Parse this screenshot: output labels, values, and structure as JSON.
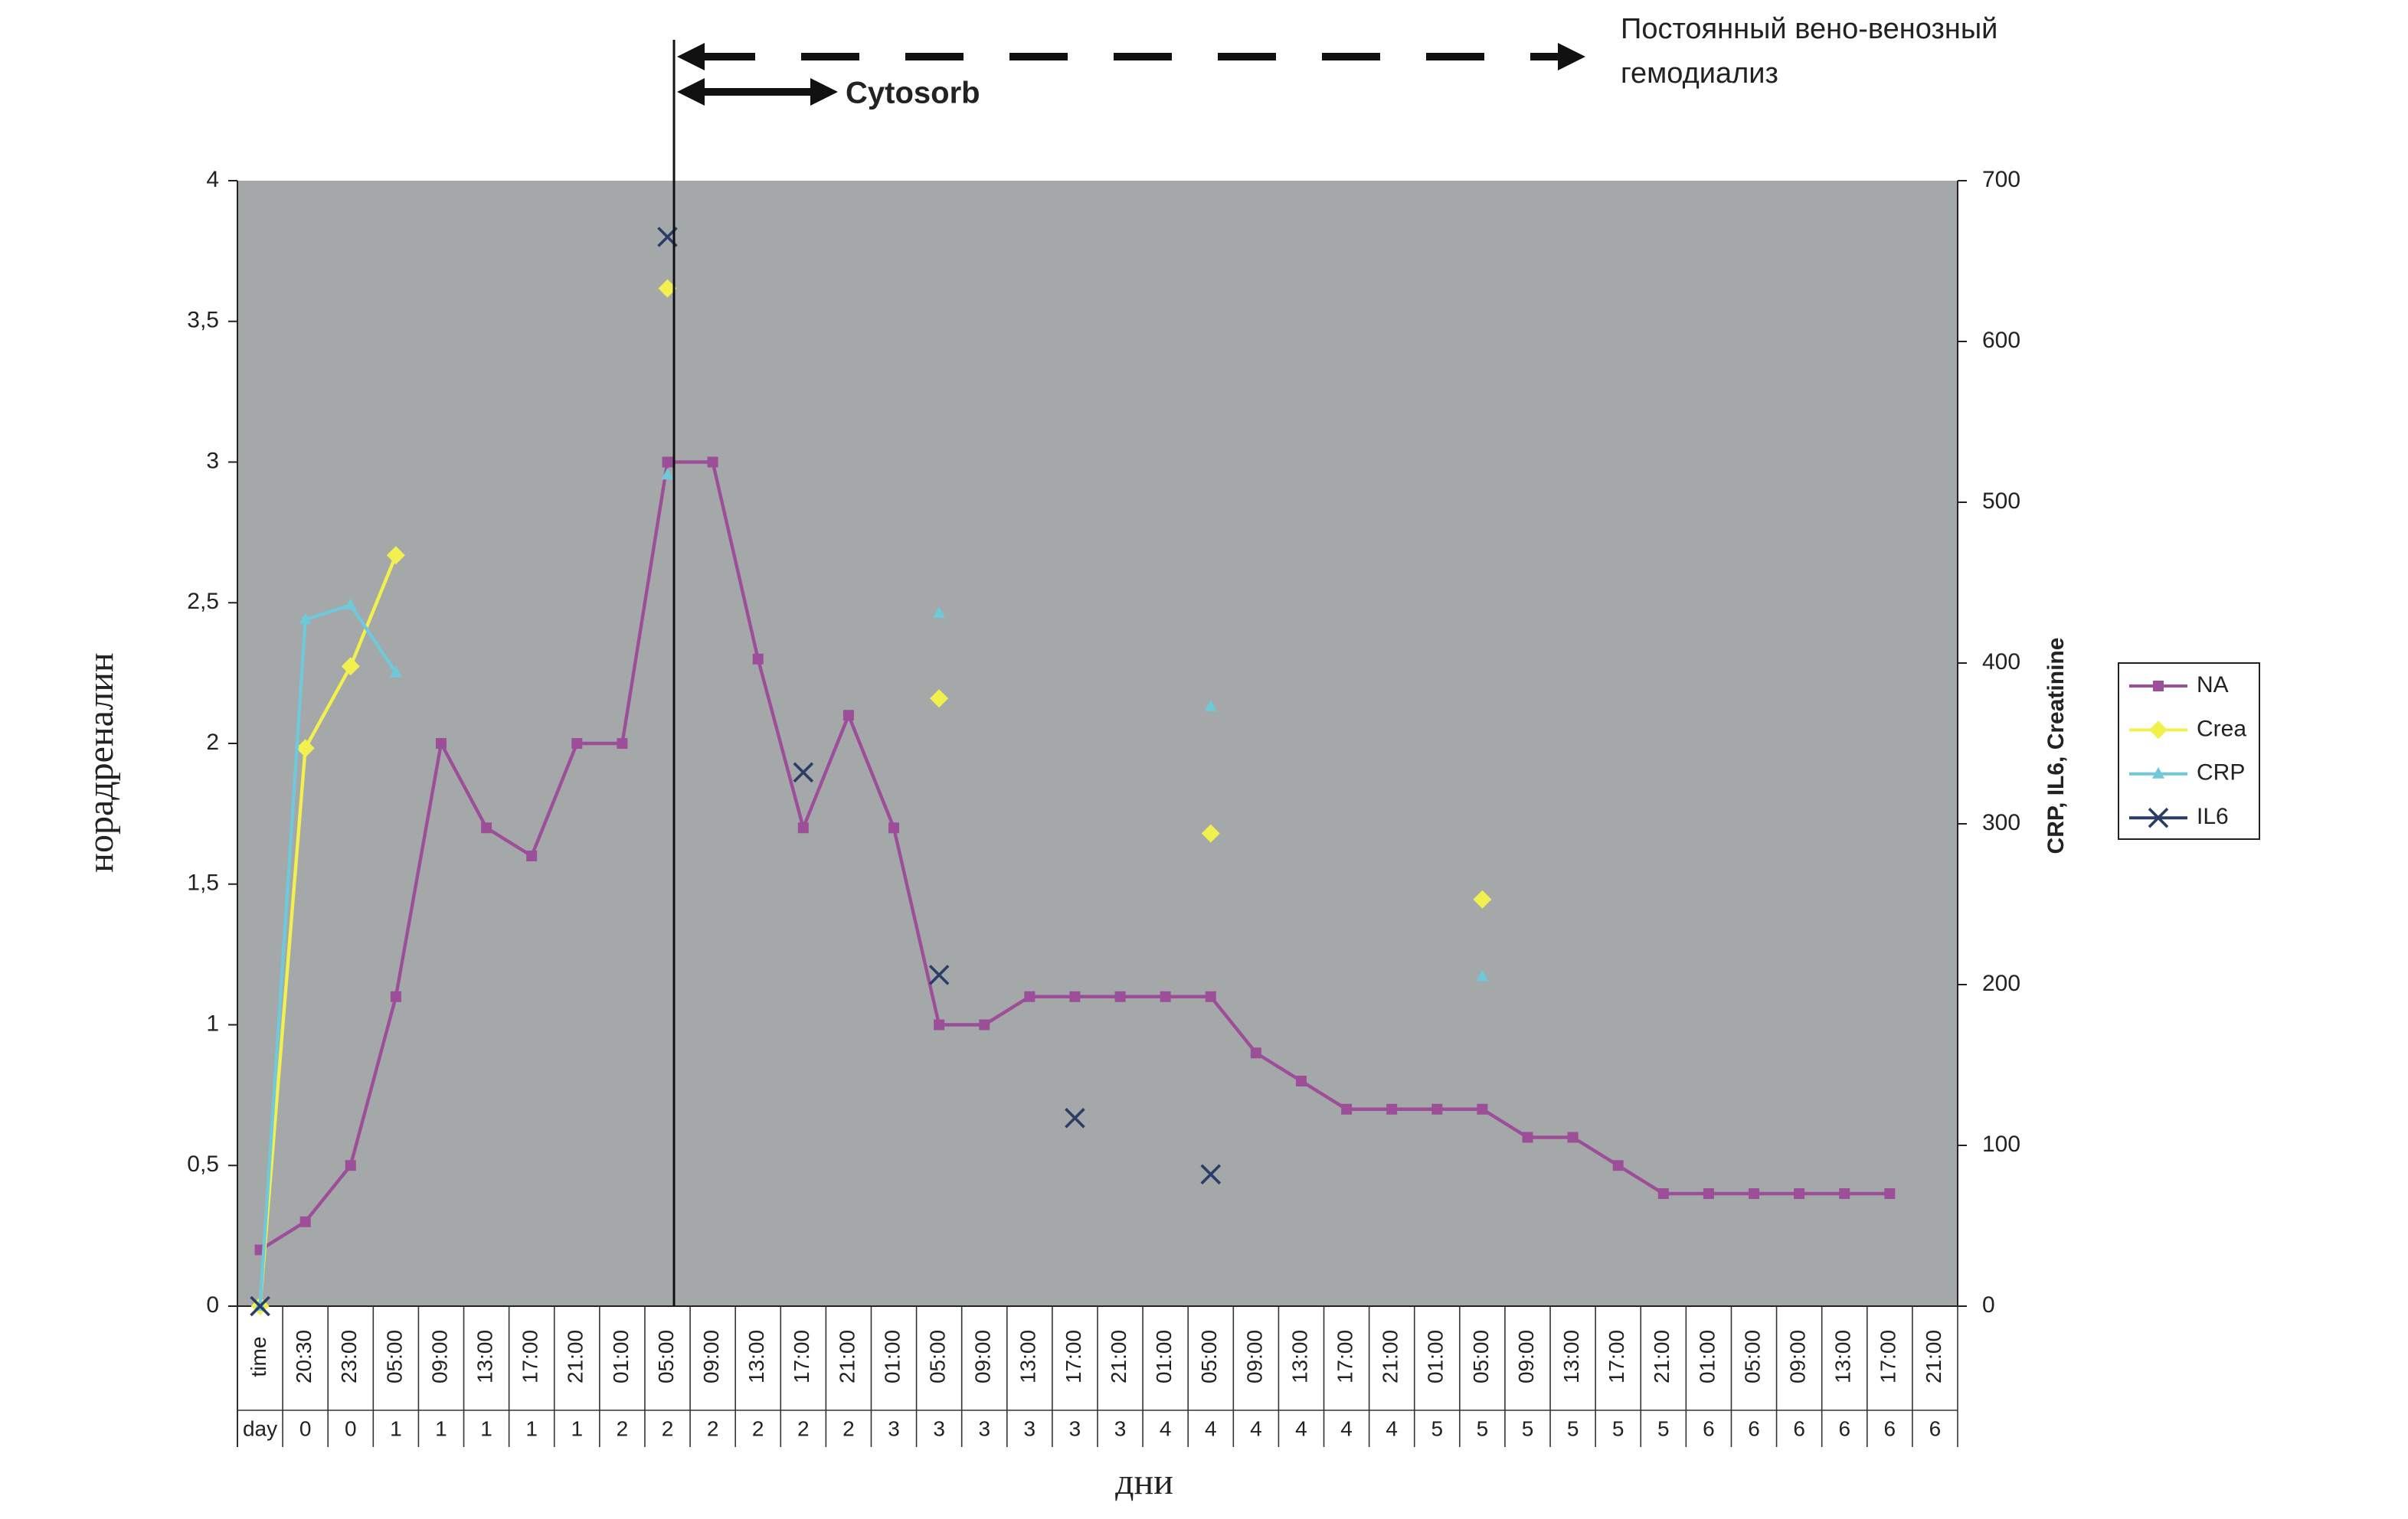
{
  "chart_data": {
    "type": "line",
    "categories": [
      "time",
      "20:30",
      "23:00",
      "05:00",
      "09:00",
      "13:00",
      "17:00",
      "21:00",
      "01:00",
      "05:00",
      "09:00",
      "13:00",
      "17:00",
      "21:00",
      "01:00",
      "05:00",
      "09:00",
      "13:00",
      "17:00",
      "21:00",
      "01:00",
      "05:00",
      "09:00",
      "13:00",
      "17:00",
      "21:00",
      "01:00",
      "05:00",
      "09:00",
      "13:00",
      "17:00",
      "21:00",
      "01:00",
      "05:00",
      "09:00",
      "13:00",
      "17:00",
      "21:00"
    ],
    "category_days": [
      "day",
      "0",
      "0",
      "1",
      "1",
      "1",
      "1",
      "1",
      "2",
      "2",
      "2",
      "2",
      "2",
      "2",
      "3",
      "3",
      "3",
      "3",
      "3",
      "3",
      "4",
      "4",
      "4",
      "4",
      "4",
      "4",
      "5",
      "5",
      "5",
      "5",
      "5",
      "5",
      "6",
      "6",
      "6",
      "6",
      "6",
      "6"
    ],
    "xlabel": "дни",
    "ylabel": "норадреналин",
    "y2label": "CRP, IL6, Creatinine",
    "ylim": [
      0,
      4
    ],
    "yticks": [
      0,
      {
        "value": 0.5,
        "label": "0,5"
      },
      1,
      {
        "value": 1.5,
        "label": "1,5"
      },
      2,
      {
        "value": 2.5,
        "label": "2,5"
      },
      3,
      {
        "value": 3.5,
        "label": "3,5"
      },
      4
    ],
    "y2lim": [
      0,
      700
    ],
    "y2ticks": [
      0,
      100,
      200,
      300,
      400,
      500,
      600,
      700
    ],
    "plot_background": "#a4a8a9",
    "legend": "right",
    "series": [
      {
        "name": "NA",
        "color": "#9c4f98",
        "marker": "square",
        "line": true,
        "values": [
          0.2,
          0.3,
          0.5,
          1.1,
          2.0,
          1.7,
          1.6,
          2.0,
          2.0,
          3.0,
          3.0,
          2.3,
          1.7,
          2.1,
          1.7,
          1.0,
          1.0,
          1.1,
          1.1,
          1.1,
          1.1,
          1.1,
          0.9,
          0.8,
          0.7,
          0.7,
          0.7,
          0.7,
          0.6,
          0.6,
          0.5,
          0.4,
          0.4,
          0.4,
          0.4,
          0.4,
          0.4,
          null
        ]
      },
      {
        "name": "Crea",
        "color": "#f2f04e",
        "marker": "diamond",
        "line": true,
        "axis": "y2",
        "values": [
          0,
          347,
          398,
          467,
          null,
          null,
          null,
          null,
          null,
          633,
          null,
          null,
          null,
          null,
          null,
          378,
          null,
          null,
          null,
          null,
          null,
          294,
          null,
          null,
          null,
          null,
          null,
          253,
          null,
          null,
          null,
          null,
          null,
          null,
          null,
          null,
          null,
          null
        ]
      },
      {
        "name": "CRP",
        "color": "#6fc9d8",
        "marker": "triangle",
        "line": true,
        "axis": "y2",
        "values": [
          0,
          427,
          436,
          394,
          null,
          null,
          null,
          null,
          null,
          517,
          null,
          null,
          null,
          null,
          null,
          431,
          null,
          null,
          null,
          null,
          null,
          373,
          null,
          null,
          null,
          null,
          null,
          205,
          null,
          null,
          null,
          null,
          null,
          null,
          null,
          null,
          null,
          null
        ]
      },
      {
        "name": "IL6",
        "color": "#2b3d66",
        "marker": "x",
        "line": false,
        "axis": "y2",
        "values": [
          0,
          null,
          null,
          null,
          null,
          null,
          null,
          null,
          null,
          665,
          null,
          null,
          332,
          null,
          null,
          206,
          null,
          null,
          117,
          null,
          null,
          82,
          null,
          null,
          null,
          null,
          null,
          null,
          null,
          null,
          null,
          null,
          null,
          null,
          null,
          null,
          null,
          null
        ]
      }
    ],
    "annotations": {
      "cytosorb": "Cytosorb",
      "dialysis": [
        "Постоянный вено-венозный",
        "гемодиализ"
      ]
    }
  }
}
